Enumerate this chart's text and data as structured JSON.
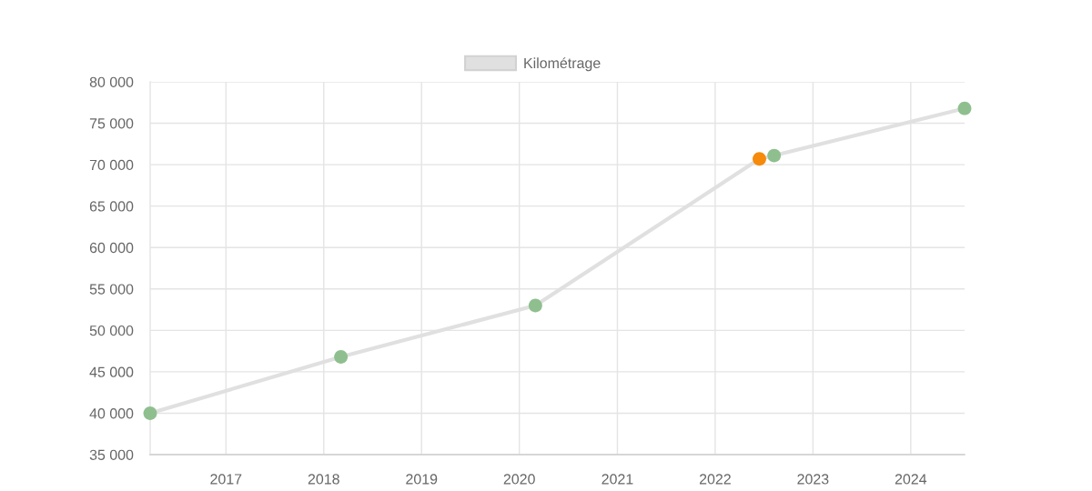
{
  "chart_data": {
    "type": "line",
    "x": [
      "2016-03-24",
      "2018-03-06",
      "2020-03-01",
      "2022-06-15",
      "2022-08-09",
      "2024-07-20"
    ],
    "series": [
      {
        "name": "Kilométrage",
        "color": "#e0e0e0",
        "colors": [
          "#8fbf8f",
          "#8fbf8f",
          "#8fbf8f",
          "#f58a0b",
          "#8fbf8f",
          "#8fbf8f"
        ],
        "values": [
          40000,
          46800,
          53000,
          70700,
          71100,
          76800
        ]
      }
    ],
    "xlim": [
      "2016-03-24",
      "2024-07-20"
    ],
    "xticks": [
      {
        "value": "2017",
        "label": "2017"
      },
      {
        "value": "2018",
        "label": "2018"
      },
      {
        "value": "2019",
        "label": "2019"
      },
      {
        "value": "2020",
        "label": "2020"
      },
      {
        "value": "2021",
        "label": "2021"
      },
      {
        "value": "2022",
        "label": "2022"
      },
      {
        "value": "2023",
        "label": "2023"
      },
      {
        "value": "2024",
        "label": "2024"
      }
    ],
    "ylim": [
      35000,
      80000
    ],
    "yticks": [
      {
        "value": 35000,
        "label": "35 000"
      },
      {
        "value": 40000,
        "label": "40 000"
      },
      {
        "value": 45000,
        "label": "45 000"
      },
      {
        "value": 50000,
        "label": "50 000"
      },
      {
        "value": 55000,
        "label": "55 000"
      },
      {
        "value": 60000,
        "label": "60 000"
      },
      {
        "value": 65000,
        "label": "65 000"
      },
      {
        "value": 70000,
        "label": "70 000"
      },
      {
        "value": 75000,
        "label": "75 000"
      },
      {
        "value": 80000,
        "label": "80 000"
      }
    ],
    "grid": true,
    "legend": "top",
    "marker": "circle",
    "line_style": "solid"
  }
}
